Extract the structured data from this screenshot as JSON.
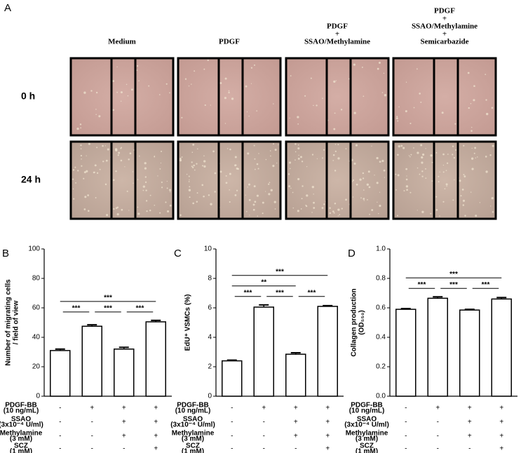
{
  "panel_labels": [
    "A",
    "B",
    "C",
    "D"
  ],
  "panel_a": {
    "columns": [
      [
        "Medium"
      ],
      [
        "PDGF"
      ],
      [
        "PDGF",
        "+",
        "SSAO/Methylamine"
      ],
      [
        "PDGF",
        "+",
        "SSAO/Methylamine",
        "+",
        "Semicarbazide"
      ]
    ],
    "rows": [
      "0 h",
      "24 h"
    ]
  },
  "chart_data": [
    {
      "type": "bar",
      "ylabel": [
        "Number of migrating cells",
        "/ field of view"
      ],
      "values": [
        31,
        47.5,
        32,
        50.5
      ],
      "errors": [
        1,
        1,
        1.2,
        1
      ],
      "color": "#ffffff",
      "ylim": [
        0,
        100
      ],
      "yticks": [
        0,
        20,
        40,
        60,
        80,
        100
      ],
      "significance": [
        {
          "from": 0,
          "to": 1,
          "label": "***"
        },
        {
          "from": 1,
          "to": 2,
          "label": "***"
        },
        {
          "from": 2,
          "to": 3,
          "label": "***"
        },
        {
          "from": 0,
          "to": 3,
          "label": "***"
        }
      ],
      "conditions": [
        {
          "label": [
            "PDGF-BB",
            "(10 ng/mL)"
          ],
          "signs": [
            "-",
            "+",
            "+",
            "+"
          ]
        },
        {
          "label": [
            "SSAO",
            "(3x10⁻⁴ U/ml)"
          ],
          "signs": [
            "-",
            "-",
            "+",
            "+"
          ]
        },
        {
          "label": [
            "Methylamine",
            "(3 mM)"
          ],
          "signs": [
            "-",
            "-",
            "+",
            "+"
          ]
        },
        {
          "label": [
            "SCZ",
            "(1 mM)"
          ],
          "signs": [
            "-",
            "-",
            "-",
            "+"
          ]
        }
      ]
    },
    {
      "type": "bar",
      "ylabel": [
        "EdU⁺ VSMCs (%)"
      ],
      "values": [
        2.4,
        6.05,
        2.85,
        6.1
      ],
      "errors": [
        0.05,
        0.15,
        0.1,
        0.05
      ],
      "color": "#ffffff",
      "ylim": [
        0,
        10
      ],
      "yticks": [
        0,
        2,
        4,
        6,
        8,
        10
      ],
      "significance": [
        {
          "from": 0,
          "to": 1,
          "label": "***"
        },
        {
          "from": 1,
          "to": 2,
          "label": "***"
        },
        {
          "from": 2,
          "to": 3,
          "label": "***"
        },
        {
          "from": 0,
          "to": 2,
          "label": "**"
        },
        {
          "from": 0,
          "to": 3,
          "label": "***"
        }
      ],
      "conditions": [
        {
          "label": [
            "PDGF-BB",
            "(10 ng/mL)"
          ],
          "signs": [
            "-",
            "+",
            "+",
            "+"
          ]
        },
        {
          "label": [
            "SSAO",
            "(3x10⁻⁴ U/ml)"
          ],
          "signs": [
            "-",
            "-",
            "+",
            "+"
          ]
        },
        {
          "label": [
            "Methylamine",
            "(3 mM)"
          ],
          "signs": [
            "-",
            "-",
            "+",
            "+"
          ]
        },
        {
          "label": [
            "SCZ",
            "(1 mM)"
          ],
          "signs": [
            "-",
            "-",
            "-",
            "+"
          ]
        }
      ]
    },
    {
      "type": "bar",
      "ylabel": [
        "Collagen production",
        "(OD₅₅₀)"
      ],
      "values": [
        0.59,
        0.665,
        0.585,
        0.66
      ],
      "errors": [
        0.005,
        0.01,
        0.005,
        0.01
      ],
      "color": "#ffffff",
      "ylim": [
        0,
        1.0
      ],
      "yticks": [
        {
          "value": 0,
          "label": "0.0"
        },
        {
          "value": 0.2,
          "label": "0.2"
        },
        {
          "value": 0.4,
          "label": "0.4"
        },
        {
          "value": 0.6,
          "label": "0.6"
        },
        {
          "value": 0.8,
          "label": "0.8"
        },
        {
          "value": 1.0,
          "label": "1.0"
        }
      ],
      "significance": [
        {
          "from": 0,
          "to": 1,
          "label": "***"
        },
        {
          "from": 1,
          "to": 2,
          "label": "***"
        },
        {
          "from": 2,
          "to": 3,
          "label": "***"
        },
        {
          "from": 0,
          "to": 3,
          "label": "***"
        }
      ],
      "conditions": [
        {
          "label": [
            "PDGF-BB",
            "(10 ng/mL)"
          ],
          "signs": [
            "-",
            "+",
            "+",
            "+"
          ]
        },
        {
          "label": [
            "SSAO",
            "(3x10⁻⁴ U/ml)"
          ],
          "signs": [
            "-",
            "-",
            "+",
            "+"
          ]
        },
        {
          "label": [
            "Methylamine",
            "(3 mM)"
          ],
          "signs": [
            "-",
            "-",
            "+",
            "+"
          ]
        },
        {
          "label": [
            "SCZ",
            "(1 mM)"
          ],
          "signs": [
            "-",
            "-",
            "-",
            "+"
          ]
        }
      ]
    }
  ]
}
